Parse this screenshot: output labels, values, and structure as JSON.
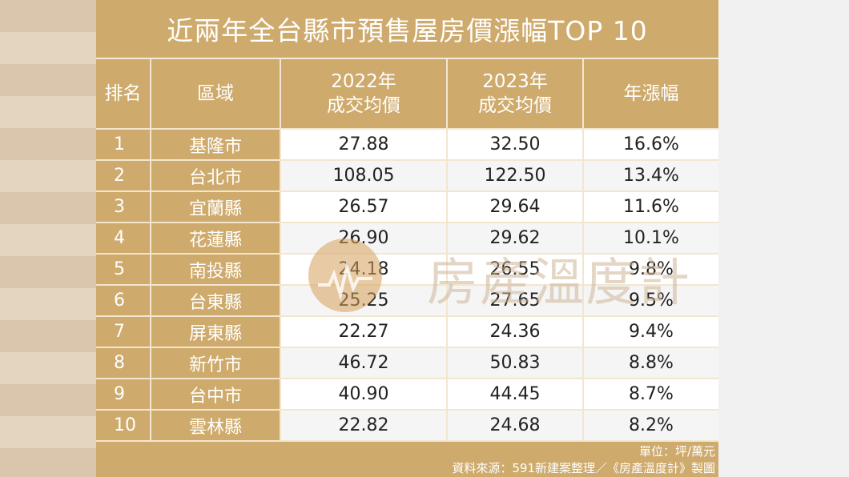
{
  "title": "近兩年全台縣市預售屋房價漲幅TOP 10",
  "headers": {
    "rank": "排名",
    "region": "區域",
    "y2022_line1": "2022年",
    "y2022_line2": "成交均價",
    "y2023_line1": "2023年",
    "y2023_line2": "成交均價",
    "growth": "年漲幅"
  },
  "rows": [
    {
      "rank": "1",
      "region": "基隆市",
      "p2022": "27.88",
      "p2023": "32.50",
      "growth": "16.6%"
    },
    {
      "rank": "2",
      "region": "台北市",
      "p2022": "108.05",
      "p2023": "122.50",
      "growth": "13.4%"
    },
    {
      "rank": "3",
      "region": "宜蘭縣",
      "p2022": "26.57",
      "p2023": "29.64",
      "growth": "11.6%"
    },
    {
      "rank": "4",
      "region": "花蓮縣",
      "p2022": "26.90",
      "p2023": "29.62",
      "growth": "10.1%"
    },
    {
      "rank": "5",
      "region": "南投縣",
      "p2022": "24.18",
      "p2023": "26.55",
      "growth": "9.8%"
    },
    {
      "rank": "6",
      "region": "台東縣",
      "p2022": "25.25",
      "p2023": "27.65",
      "growth": "9.5%"
    },
    {
      "rank": "7",
      "region": "屏東縣",
      "p2022": "22.27",
      "p2023": "24.36",
      "growth": "9.4%"
    },
    {
      "rank": "8",
      "region": "新竹市",
      "p2022": "46.72",
      "p2023": "50.83",
      "growth": "8.8%"
    },
    {
      "rank": "9",
      "region": "台中市",
      "p2022": "40.90",
      "p2023": "44.45",
      "growth": "8.7%"
    },
    {
      "rank": "10",
      "region": "雲林縣",
      "p2022": "22.82",
      "p2023": "24.68",
      "growth": "8.2%"
    }
  ],
  "footer": {
    "unit": "單位：坪/萬元",
    "source": "資料來源：591新建案整理／《房產溫度計》製圖"
  },
  "watermark": {
    "text": "房產溫度計",
    "icon": "thermometer-pulse-logo-icon"
  },
  "colors": {
    "header_bg": "#ceaa6c",
    "row_light": "#ffffff",
    "row_alt": "#f5f5f5",
    "divider": "#f3e6cf"
  }
}
